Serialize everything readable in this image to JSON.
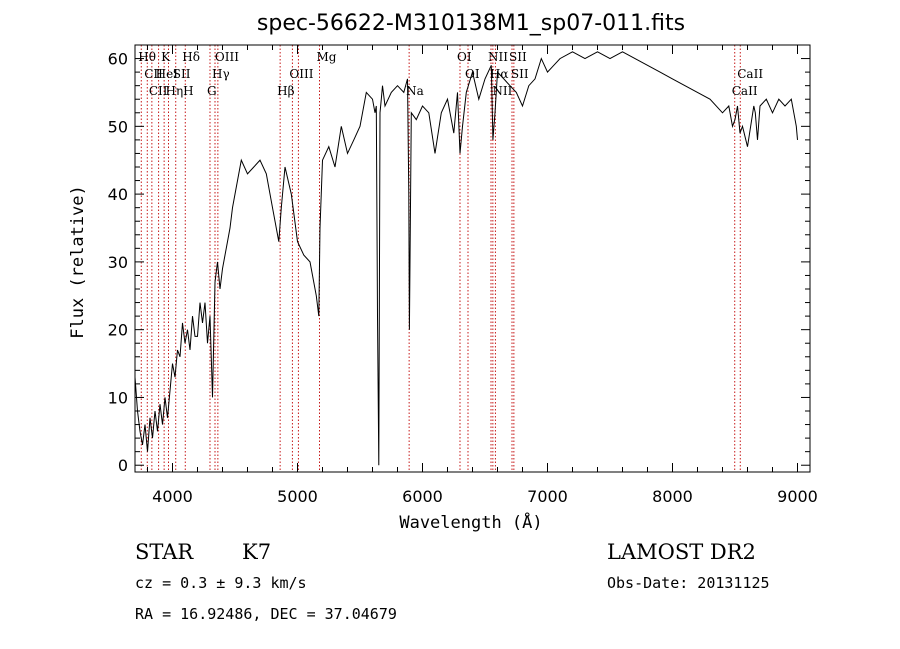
{
  "chart_data": {
    "type": "line",
    "title": "spec-56622-M310138M1_sp07-011.fits",
    "xlabel": "Wavelength (Å)",
    "ylabel": "Flux (relative)",
    "xlim": [
      3700,
      9100
    ],
    "ylim": [
      -1,
      62
    ],
    "x_ticks": [
      4000,
      5000,
      6000,
      7000,
      8000,
      9000
    ],
    "y_ticks": [
      0,
      10,
      20,
      30,
      40,
      50,
      60
    ],
    "x_tick_labels": [
      "4000",
      "5000",
      "6000",
      "7000",
      "8000",
      "9000"
    ],
    "y_tick_labels": [
      "0",
      "10",
      "20",
      "30",
      "40",
      "50",
      "60"
    ],
    "series": [
      {
        "x": [
          3700,
          3720,
          3740,
          3760,
          3780,
          3800,
          3820,
          3840,
          3860,
          3880,
          3900,
          3920,
          3940,
          3960,
          3980,
          4000,
          4020,
          4040,
          4060,
          4080,
          4100,
          4120,
          4140,
          4160,
          4180,
          4200,
          4220,
          4240,
          4260,
          4280,
          4300,
          4320,
          4340,
          4360,
          4380,
          4400,
          4420,
          4440,
          4460,
          4480,
          4500,
          4550,
          4600,
          4650,
          4700,
          4750,
          4800,
          4850,
          4870,
          4900,
          4950,
          5000,
          5050,
          5100,
          5150,
          5170,
          5180,
          5200,
          5250,
          5300,
          5350,
          5400,
          5450,
          5500,
          5550,
          5600,
          5620,
          5630,
          5640,
          5650,
          5660,
          5670,
          5680,
          5700,
          5750,
          5800,
          5850,
          5880,
          5890,
          5895,
          5900,
          5910,
          5950,
          6000,
          6050,
          6100,
          6150,
          6200,
          6250,
          6280,
          6300,
          6320,
          6350,
          6400,
          6450,
          6500,
          6550,
          6563,
          6580,
          6600,
          6650,
          6700,
          6750,
          6800,
          6850,
          6900,
          6950,
          7000,
          7050,
          7100,
          7200,
          7300,
          7400,
          7500,
          7600,
          7700,
          7800,
          7900,
          8000,
          8100,
          8200,
          8300,
          8400,
          8450,
          8480,
          8500,
          8520,
          8540,
          8560,
          8600,
          8650,
          8662,
          8680,
          8700,
          8750,
          8800,
          8850,
          8900,
          8950,
          8990,
          9000
        ],
        "y": [
          13,
          8,
          5,
          3,
          6,
          2,
          7,
          4,
          8,
          5,
          9,
          6,
          10,
          7,
          11,
          15,
          13,
          17,
          16,
          21,
          18,
          20,
          17,
          22,
          19,
          19,
          24,
          21,
          24,
          18,
          22,
          10,
          27,
          30,
          26,
          29,
          31,
          33,
          35,
          38,
          40,
          45,
          43,
          44,
          45,
          43,
          38,
          33,
          38,
          44,
          40,
          33,
          31,
          30,
          25,
          22,
          35,
          45,
          47,
          44,
          50,
          46,
          48,
          50,
          55,
          54,
          52,
          53,
          22,
          0,
          52,
          54,
          56,
          53,
          55,
          56,
          55,
          57,
          40,
          20,
          30,
          52,
          51,
          53,
          52,
          46,
          52,
          54,
          49,
          55,
          46,
          50,
          55,
          58,
          54,
          57,
          59,
          48,
          52,
          58,
          57,
          56,
          55,
          53,
          56,
          57,
          60,
          58,
          59,
          60,
          61,
          60,
          61,
          60,
          61,
          60,
          59,
          58,
          57,
          56,
          55,
          54,
          52,
          53,
          50,
          51,
          53,
          49,
          50,
          47,
          53,
          52,
          48,
          53,
          54,
          52,
          54,
          53,
          54,
          50,
          48
        ],
        "color": "#000000"
      }
    ],
    "line_markers": [
      {
        "x": 3750,
        "label": "Hθ",
        "row": 0
      },
      {
        "x": 3798,
        "label": "CII",
        "row": 1
      },
      {
        "x": 3835,
        "label": "CII",
        "row": 2
      },
      {
        "x": 3889,
        "label": "HeI",
        "row": 1
      },
      {
        "x": 3933,
        "label": "K",
        "row": 0
      },
      {
        "x": 3968,
        "label": "HηH",
        "row": 2
      },
      {
        "x": 4026,
        "label": "SII",
        "row": 1
      },
      {
        "x": 4102,
        "label": "Hδ",
        "row": 0
      },
      {
        "x": 4300,
        "label": "G",
        "row": 2
      },
      {
        "x": 4340,
        "label": "Hγ",
        "row": 1
      },
      {
        "x": 4363,
        "label": "OIII",
        "row": 0
      },
      {
        "x": 4861,
        "label": "Hβ",
        "row": 2
      },
      {
        "x": 4959,
        "label": "OIII",
        "row": 1
      },
      {
        "x": 5007,
        "label": "",
        "row": 1
      },
      {
        "x": 5176,
        "label": "Mg",
        "row": 0
      },
      {
        "x": 5893,
        "label": "Na",
        "row": 2
      },
      {
        "x": 6300,
        "label": "OI",
        "row": 0
      },
      {
        "x": 6364,
        "label": "OI",
        "row": 1
      },
      {
        "x": 6548,
        "label": "NII",
        "row": 0
      },
      {
        "x": 6563,
        "label": "Hα",
        "row": 1
      },
      {
        "x": 6583,
        "label": "NII",
        "row": 2
      },
      {
        "x": 6716,
        "label": "SII",
        "row": 0
      },
      {
        "x": 6731,
        "label": "SII",
        "row": 1
      },
      {
        "x": 8498,
        "label": "CaII",
        "row": 2
      },
      {
        "x": 8542,
        "label": "CaII",
        "row": 1
      }
    ],
    "grid": false,
    "legend": "none"
  },
  "info": {
    "class_label": "STAR",
    "subclass": "K7",
    "survey": "LAMOST DR2",
    "redshift_line": "cz = 0.3 ± 9.3 km/s",
    "obs_date": "Obs-Date: 20131125",
    "coords": "RA =  16.92486, DEC =  37.04679"
  }
}
